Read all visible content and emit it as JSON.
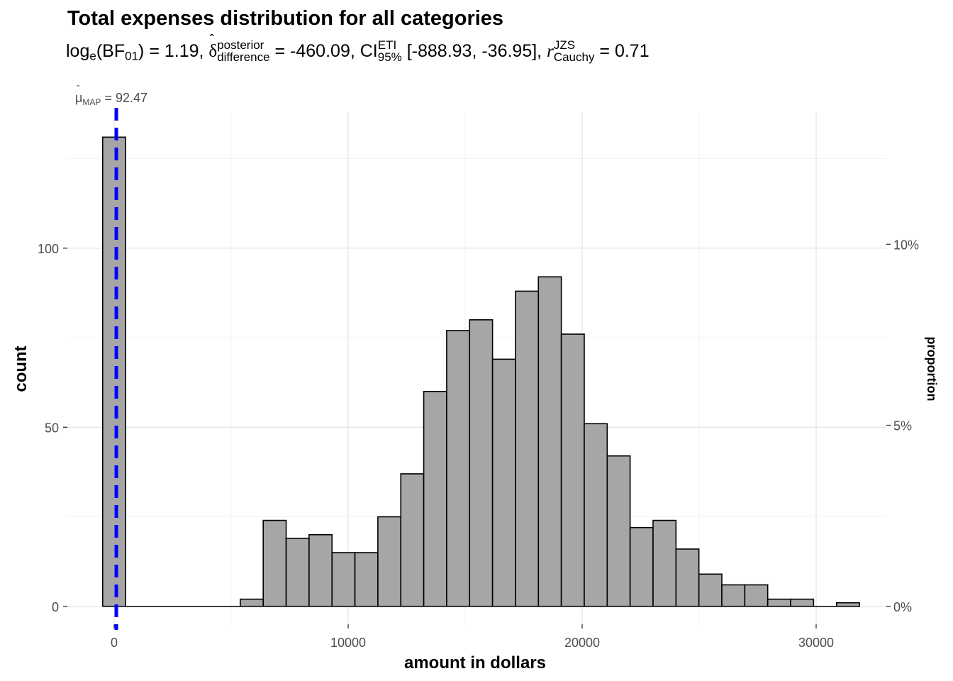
{
  "title": "Total expenses distribution for all categories",
  "subtitle": {
    "bf_label": "log",
    "bf_base": "e",
    "bf_open": "(BF",
    "bf_sub": "01",
    "bf_close": ")",
    "bf_value": " = 1.19, ",
    "delta_symbol": "δ",
    "delta_sup": "posterior",
    "delta_sub": "difference",
    "delta_value": " = -460.09, ",
    "ci_label": "CI",
    "ci_sup": "ETI",
    "ci_sub": "95%",
    "ci_value": " [-888.93, -36.95], ",
    "r_symbol": "r",
    "r_sup": "JZS",
    "r_sub": "Cauchy",
    "r_value": " = 0.71"
  },
  "chart_data": {
    "type": "bar",
    "title": "Total expenses distribution for all categories",
    "xlabel": "amount in dollars",
    "ylabel": "count",
    "y2label": "proportion",
    "xlim": [
      -2000,
      33000
    ],
    "ylim": [
      -5,
      138
    ],
    "x_ticks": [
      0,
      10000,
      20000,
      30000
    ],
    "x_tick_labels": [
      "0",
      "10000",
      "20000",
      "30000"
    ],
    "y_ticks": [
      0,
      50,
      100
    ],
    "y_tick_labels": [
      "0",
      "50",
      "100"
    ],
    "y2_ticks": [
      0,
      5,
      10
    ],
    "y2_tick_labels": [
      "0%",
      "5%",
      "10%"
    ],
    "bin_width": 980,
    "bins": [
      {
        "x": 0,
        "count": 131
      },
      {
        "x": 5880,
        "count": 2
      },
      {
        "x": 6860,
        "count": 24
      },
      {
        "x": 7840,
        "count": 19
      },
      {
        "x": 8820,
        "count": 20
      },
      {
        "x": 9800,
        "count": 15
      },
      {
        "x": 10780,
        "count": 15
      },
      {
        "x": 11760,
        "count": 25
      },
      {
        "x": 12740,
        "count": 37
      },
      {
        "x": 13720,
        "count": 60
      },
      {
        "x": 14700,
        "count": 77
      },
      {
        "x": 15680,
        "count": 80
      },
      {
        "x": 16660,
        "count": 69
      },
      {
        "x": 17640,
        "count": 88
      },
      {
        "x": 18620,
        "count": 92
      },
      {
        "x": 19600,
        "count": 76
      },
      {
        "x": 20580,
        "count": 51
      },
      {
        "x": 21560,
        "count": 42
      },
      {
        "x": 22540,
        "count": 22
      },
      {
        "x": 23520,
        "count": 24
      },
      {
        "x": 24500,
        "count": 16
      },
      {
        "x": 25480,
        "count": 9
      },
      {
        "x": 26460,
        "count": 6
      },
      {
        "x": 27440,
        "count": 6
      },
      {
        "x": 28420,
        "count": 2
      },
      {
        "x": 29400,
        "count": 2
      },
      {
        "x": 30380,
        "count": 0
      },
      {
        "x": 31360,
        "count": 1
      }
    ],
    "map_line": {
      "value": 92.47,
      "label_symbol": "μ",
      "label_sub": "MAP",
      "label_value": " = 92.47",
      "color": "#0000ff"
    },
    "bar_fill": "#a6a6a6",
    "bar_stroke": "#000000",
    "grid": true
  }
}
